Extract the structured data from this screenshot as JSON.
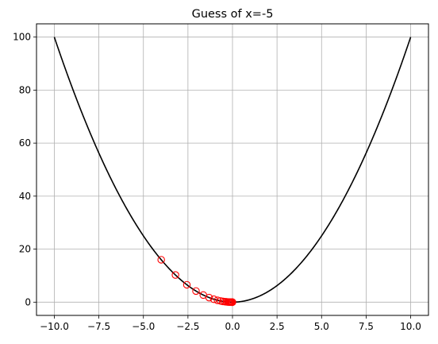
{
  "chart_data": {
    "type": "line",
    "title": "Guess of x=-5",
    "xlabel": "",
    "ylabel": "",
    "xlim": [
      -11.0,
      11.0
    ],
    "ylim": [
      -5.0,
      105.0
    ],
    "grid": true,
    "x_ticks": [
      -10.0,
      -7.5,
      -5.0,
      -2.5,
      0.0,
      2.5,
      5.0,
      7.5,
      10.0
    ],
    "x_tick_labels": [
      "−10.0",
      "−7.5",
      "−5.0",
      "−2.5",
      "0.0",
      "2.5",
      "5.0",
      "7.5",
      "10.0"
    ],
    "y_ticks": [
      0,
      20,
      40,
      60,
      80,
      100
    ],
    "y_tick_labels": [
      "0",
      "20",
      "40",
      "60",
      "80",
      "100"
    ],
    "series": [
      {
        "kind": "line",
        "function": "y = x^2",
        "x_range": [
          -10,
          10
        ],
        "color": "#000000"
      },
      {
        "kind": "scatter",
        "marker": "open-circle",
        "color": "#ff0000",
        "points": [
          {
            "x": -4.0,
            "y": 16.0
          },
          {
            "x": -3.2,
            "y": 10.24
          },
          {
            "x": -2.56,
            "y": 6.5536
          },
          {
            "x": -2.048,
            "y": 4.194
          },
          {
            "x": -1.6384,
            "y": 2.684
          },
          {
            "x": -1.3107,
            "y": 1.718
          },
          {
            "x": -1.0486,
            "y": 1.0995
          },
          {
            "x": -0.8389,
            "y": 0.7037
          },
          {
            "x": -0.6711,
            "y": 0.4504
          },
          {
            "x": -0.5369,
            "y": 0.2882
          },
          {
            "x": -0.4295,
            "y": 0.1845
          },
          {
            "x": -0.3436,
            "y": 0.1181
          },
          {
            "x": -0.2749,
            "y": 0.0756
          },
          {
            "x": -0.2199,
            "y": 0.0484
          },
          {
            "x": -0.1759,
            "y": 0.031
          },
          {
            "x": -0.1407,
            "y": 0.0198
          },
          {
            "x": -0.1126,
            "y": 0.0127
          },
          {
            "x": -0.0901,
            "y": 0.0081
          },
          {
            "x": -0.0721,
            "y": 0.0052
          },
          {
            "x": -0.0576,
            "y": 0.0033
          },
          {
            "x": -0.0461,
            "y": 0.0021
          },
          {
            "x": -0.0369,
            "y": 0.0014
          },
          {
            "x": -0.0295,
            "y": 0.0009
          },
          {
            "x": -0.0236,
            "y": 0.0006
          },
          {
            "x": -0.0189,
            "y": 0.0004
          },
          {
            "x": -0.0151,
            "y": 0.0002
          },
          {
            "x": -0.0121,
            "y": 0.0001
          },
          {
            "x": -0.0097,
            "y": 0.0001
          },
          {
            "x": -0.0077,
            "y": 0.0001
          },
          {
            "x": -0.0062,
            "y": 0.0
          }
        ]
      }
    ]
  }
}
